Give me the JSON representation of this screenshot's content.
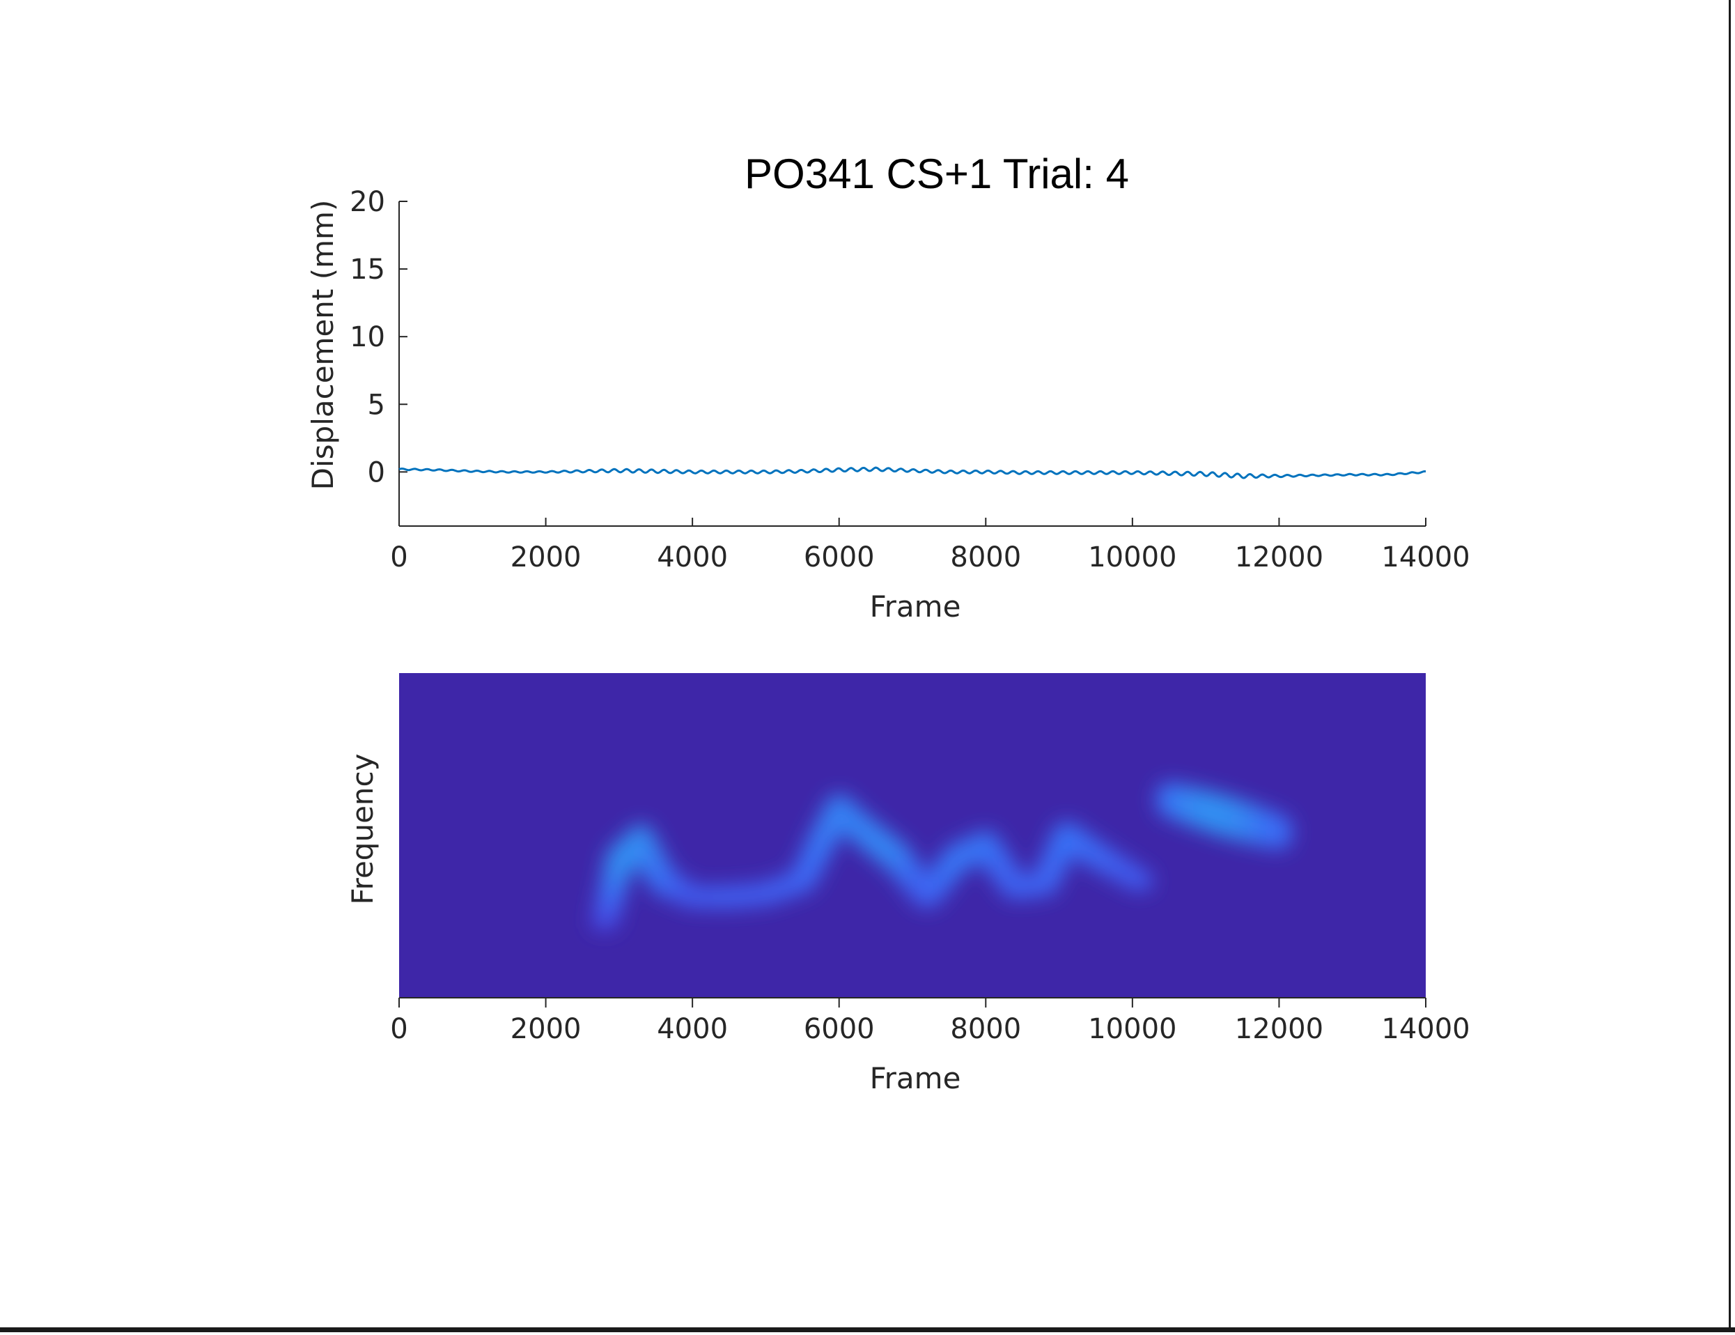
{
  "colors": {
    "line": "#0072bd",
    "axis": "#262626",
    "heatmap_background": "#3e26a8",
    "heatmap_low": "#4a3fe0",
    "heatmap_mid": "#3b6cf5",
    "heatmap_high": "#2f9ef0"
  },
  "chart_data": [
    {
      "type": "line",
      "title": "PO341 CS+1 Trial: 4",
      "xlabel": "Frame",
      "ylabel": "Displacement (mm)",
      "xlim": [
        0,
        14000
      ],
      "ylim": [
        -4,
        20
      ],
      "xticks": [
        "0",
        "2000",
        "4000",
        "6000",
        "8000",
        "10000",
        "12000",
        "14000"
      ],
      "yticks": [
        "0",
        "5",
        "10",
        "15",
        "20"
      ],
      "grid": false,
      "series": [
        {
          "x": [
            0,
            500,
            1000,
            1500,
            2000,
            2500,
            3000,
            3500,
            4000,
            4500,
            5000,
            5500,
            6000,
            6500,
            7000,
            7500,
            8000,
            8500,
            9000,
            9500,
            10000,
            10500,
            11000,
            11500,
            12000,
            12500,
            13000,
            13500,
            14000
          ],
          "y": [
            0.2,
            0.15,
            0.05,
            0.0,
            0.0,
            0.05,
            0.1,
            0.05,
            0.0,
            0.0,
            0.0,
            0.05,
            0.15,
            0.2,
            0.1,
            0.0,
            0.0,
            -0.05,
            -0.05,
            -0.05,
            -0.05,
            -0.1,
            -0.15,
            -0.3,
            -0.3,
            -0.25,
            -0.2,
            -0.2,
            0.0
          ],
          "oscillation_amplitude": [
            0.05,
            0.05,
            0.05,
            0.05,
            0.05,
            0.08,
            0.12,
            0.12,
            0.1,
            0.1,
            0.1,
            0.1,
            0.12,
            0.12,
            0.1,
            0.1,
            0.1,
            0.1,
            0.1,
            0.1,
            0.1,
            0.12,
            0.15,
            0.15,
            0.08,
            0.05,
            0.05,
            0.05,
            0.05
          ]
        }
      ]
    },
    {
      "type": "heatmap",
      "title": "",
      "xlabel": "Frame",
      "ylabel": "Frequency",
      "xlim": [
        0,
        14000
      ],
      "xticks": [
        "0",
        "2000",
        "4000",
        "6000",
        "8000",
        "10000",
        "12000",
        "14000"
      ],
      "yticks": [],
      "ridge": {
        "x": [
          2800,
          3000,
          3300,
          3600,
          4000,
          4500,
          5000,
          5500,
          5800,
          6000,
          6300,
          6800,
          7200,
          7600,
          8000,
          8400,
          8800,
          9100,
          9500,
          10100
        ],
        "frequency": [
          0.23,
          0.42,
          0.48,
          0.36,
          0.31,
          0.31,
          0.32,
          0.36,
          0.5,
          0.58,
          0.52,
          0.43,
          0.31,
          0.43,
          0.47,
          0.34,
          0.35,
          0.5,
          0.44,
          0.36
        ],
        "intensity": [
          0.1,
          0.8,
          0.85,
          0.6,
          0.3,
          0.35,
          0.35,
          0.4,
          0.6,
          0.7,
          0.7,
          0.75,
          0.35,
          0.6,
          0.6,
          0.4,
          0.4,
          0.55,
          0.5,
          0.3
        ]
      },
      "blobs": [
        {
          "x": [
            10500,
            12000
          ],
          "frequency_center": 0.56,
          "intensity": 0.85
        }
      ]
    }
  ]
}
